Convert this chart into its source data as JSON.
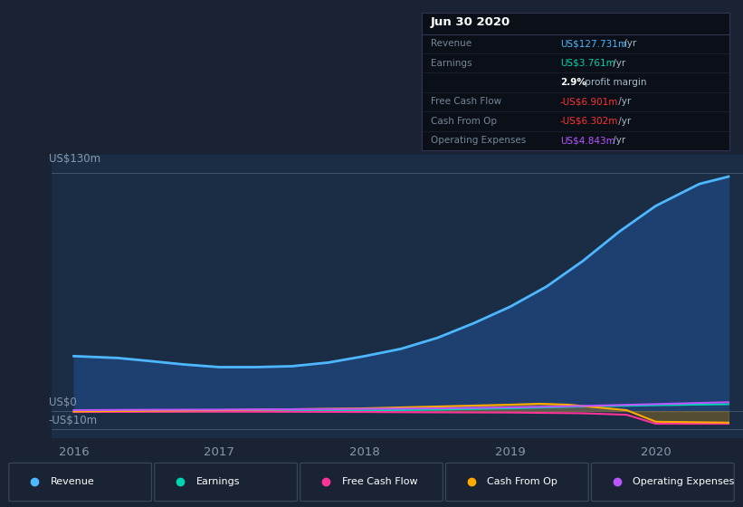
{
  "bg_color": "#1a2333",
  "plot_bg_color": "#1b2d45",
  "title": "Jun 30 2020",
  "x_label_top": "US$130m",
  "x_label_zero": "US$0",
  "x_label_neg": "-US$10m",
  "x_ticks": [
    2016,
    2017,
    2018,
    2019,
    2020
  ],
  "ylim": [
    -15,
    140
  ],
  "y_top": 130,
  "y_zero": 0,
  "y_neg": -10,
  "revenue_color": "#4db8ff",
  "earnings_color": "#00d4b0",
  "fcf_color": "#ff3399",
  "cashfromop_color": "#ffaa00",
  "opex_color": "#bb55ff",
  "revenue_fill_color": "#1e4070",
  "revenue": {
    "x": [
      2016.0,
      2016.15,
      2016.3,
      2016.5,
      2016.75,
      2017.0,
      2017.25,
      2017.5,
      2017.75,
      2018.0,
      2018.25,
      2018.5,
      2018.75,
      2019.0,
      2019.25,
      2019.5,
      2019.75,
      2020.0,
      2020.3,
      2020.5
    ],
    "y": [
      30,
      29.5,
      29,
      27.5,
      25.5,
      24,
      24,
      24.5,
      26.5,
      30,
      34,
      40,
      48,
      57,
      68,
      82,
      98,
      112,
      124,
      128
    ]
  },
  "earnings": {
    "x": [
      2016.0,
      2016.5,
      2017.0,
      2017.5,
      2018.0,
      2018.5,
      2019.0,
      2019.5,
      2020.0,
      2020.5
    ],
    "y": [
      -0.3,
      -0.2,
      -0.1,
      0.1,
      0.3,
      0.8,
      1.5,
      2.5,
      3.2,
      3.761
    ]
  },
  "fcf": {
    "x": [
      2016.0,
      2016.5,
      2017.0,
      2017.5,
      2018.0,
      2018.5,
      2019.0,
      2019.5,
      2019.8,
      2020.0,
      2020.5
    ],
    "y": [
      -0.5,
      -0.4,
      -0.3,
      -0.4,
      -0.5,
      -0.7,
      -0.8,
      -1.2,
      -2.0,
      -6.9,
      -6.901
    ]
  },
  "cashfromop": {
    "x": [
      2016.0,
      2016.5,
      2017.0,
      2017.5,
      2018.0,
      2018.5,
      2019.0,
      2019.2,
      2019.4,
      2019.6,
      2019.8,
      2020.0,
      2020.5
    ],
    "y": [
      -0.2,
      0.2,
      0.5,
      1.0,
      1.5,
      2.5,
      3.5,
      4.0,
      3.5,
      2.0,
      0.5,
      -5.8,
      -6.302
    ]
  },
  "opex": {
    "x": [
      2016.0,
      2016.5,
      2017.0,
      2017.5,
      2018.0,
      2018.5,
      2019.0,
      2019.5,
      2020.0,
      2020.5
    ],
    "y": [
      0.5,
      0.7,
      0.8,
      1.0,
      1.2,
      1.5,
      2.0,
      2.8,
      3.8,
      4.843
    ]
  },
  "info_rows": [
    {
      "label": "Revenue",
      "value": "US$127.731m",
      "value_color": "#4db8ff",
      "suffix": " /yr",
      "bold_val": false
    },
    {
      "label": "Earnings",
      "value": "US$3.761m",
      "value_color": "#00d4b0",
      "suffix": " /yr",
      "bold_val": false
    },
    {
      "label": "",
      "value": "2.9%",
      "value_color": "#ffffff",
      "suffix": " profit margin",
      "bold_val": true
    },
    {
      "label": "Free Cash Flow",
      "value": "-US$6.901m",
      "value_color": "#ff3333",
      "suffix": " /yr",
      "bold_val": false
    },
    {
      "label": "Cash From Op",
      "value": "-US$6.302m",
      "value_color": "#ff3333",
      "suffix": " /yr",
      "bold_val": false
    },
    {
      "label": "Operating Expenses",
      "value": "US$4.843m",
      "value_color": "#bb55ff",
      "suffix": " /yr",
      "bold_val": false
    }
  ],
  "legend_items": [
    {
      "label": "Revenue",
      "color": "#4db8ff"
    },
    {
      "label": "Earnings",
      "color": "#00d4b0"
    },
    {
      "label": "Free Cash Flow",
      "color": "#ff3399"
    },
    {
      "label": "Cash From Op",
      "color": "#ffaa00"
    },
    {
      "label": "Operating Expenses",
      "color": "#bb55ff"
    }
  ]
}
